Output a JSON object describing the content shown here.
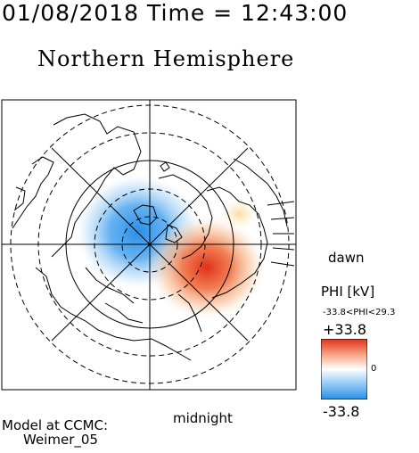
{
  "header": {
    "datetime": "01/08/2018 Time = 12:43:00",
    "title": "Northern Hemisphere"
  },
  "labels": {
    "dawn": "dawn",
    "midnight": "midnight",
    "model_line1": "Model at CCMC:",
    "model_line2": "Weimer_05"
  },
  "colorbar": {
    "quantity": "PHI [kV]",
    "range_text": "-33.8<PHI<29.3",
    "max_label": "+33.8",
    "zero_label": "0",
    "min_label": "-33.8",
    "colors": {
      "positive": "#e0301a",
      "mid": "#ffffff",
      "negative": "#2a8ee8"
    }
  }
}
